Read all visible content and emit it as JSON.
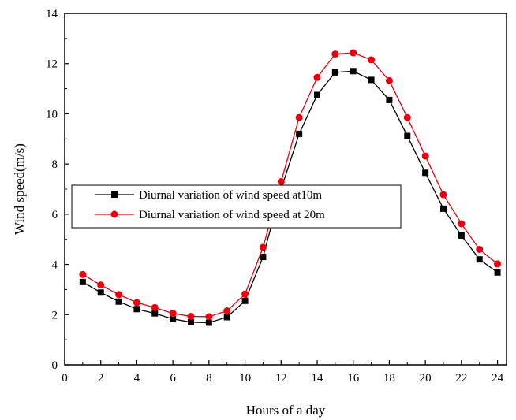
{
  "chart_data": {
    "type": "line",
    "title": "",
    "xlabel": "Hours of a day",
    "ylabel": "Wind speed(m/s)",
    "xlim": [
      0,
      24.5
    ],
    "ylim": [
      0,
      14
    ],
    "x_ticks": [
      0,
      2,
      4,
      6,
      8,
      10,
      12,
      14,
      16,
      18,
      20,
      22,
      24
    ],
    "y_ticks": [
      0,
      2,
      4,
      6,
      8,
      10,
      12,
      14
    ],
    "grid": false,
    "legend_placement": "center-left",
    "x": [
      1,
      2,
      3,
      4,
      5,
      6,
      7,
      8,
      9,
      10,
      11,
      12,
      13,
      14,
      15,
      16,
      17,
      18,
      19,
      20,
      21,
      22,
      23,
      24
    ],
    "series": [
      {
        "name": "Diurnal variation of wind speed at10m",
        "color": "#000000",
        "marker": "square",
        "values": [
          3.3,
          2.88,
          2.52,
          2.22,
          2.05,
          1.83,
          1.7,
          1.68,
          1.9,
          2.55,
          4.3,
          7.0,
          9.2,
          10.75,
          11.65,
          11.7,
          11.35,
          10.55,
          9.12,
          7.65,
          6.22,
          5.15,
          4.2,
          3.68
        ]
      },
      {
        "name": "Diurnal variation of wind speed at 20m",
        "color": "#e8000e",
        "marker": "circle",
        "values": [
          3.6,
          3.18,
          2.8,
          2.48,
          2.28,
          2.05,
          1.93,
          1.92,
          2.15,
          2.82,
          4.68,
          7.3,
          9.85,
          11.45,
          12.38,
          12.43,
          12.15,
          11.32,
          9.85,
          8.32,
          6.78,
          5.62,
          4.6,
          4.02
        ]
      }
    ]
  }
}
